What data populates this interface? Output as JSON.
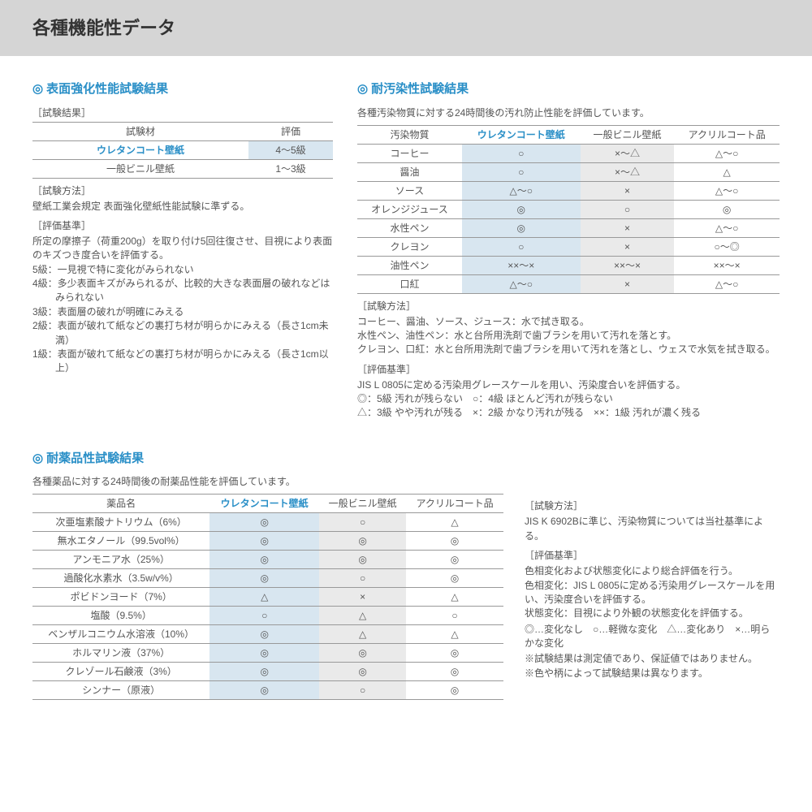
{
  "header": {
    "title": "各種機能性データ"
  },
  "colors": {
    "accent": "#2a8fc7",
    "hl_blue": "#d8e6f0",
    "hl_grey": "#eaeaea"
  },
  "sec1": {
    "title": "表面強化性能試験結果",
    "result_label": "［試験結果］",
    "headers": [
      "試験材",
      "評価"
    ],
    "rows": [
      {
        "name": "ウレタンコート壁紙",
        "val": "4～5級",
        "highlight": true
      },
      {
        "name": "一般ビニル壁紙",
        "val": "1～3級",
        "highlight": false
      }
    ],
    "method_label": "［試験方法］",
    "method_text": "壁紙工業会規定 表面強化壁紙性能試験に準ずる。",
    "criteria_label": "［評価基準］",
    "criteria_text": "所定の摩擦子（荷重200g）を取り付け5回往復させ、目視により表面のキズつき度合いを評価する。",
    "grades": [
      "5級：一見視で特に変化がみられない",
      "4級：多少表面キズがみられるが、比較的大きな表面層の破れなどはみられない",
      "3級：表面層の破れが明確にみえる",
      "2級：表面が破れて紙などの裏打ち材が明らかにみえる（長さ1cm未満）",
      "1級：表面が破れて紙などの裏打ち材が明らかにみえる（長さ1cm以上）"
    ]
  },
  "sec2": {
    "title": "耐汚染性試験結果",
    "intro": "各種汚染物質に対する24時間後の汚れ防止性能を評価しています。",
    "headers": [
      "汚染物質",
      "ウレタンコート壁紙",
      "一般ビニル壁紙",
      "アクリルコート品"
    ],
    "rows": [
      [
        "コーヒー",
        "○",
        "×～△",
        "△～○"
      ],
      [
        "醤油",
        "○",
        "×～△",
        "△"
      ],
      [
        "ソース",
        "△～○",
        "×",
        "△～○"
      ],
      [
        "オレンジジュース",
        "◎",
        "○",
        "◎"
      ],
      [
        "水性ペン",
        "◎",
        "×",
        "△～○"
      ],
      [
        "クレヨン",
        "○",
        "×",
        "○～◎"
      ],
      [
        "油性ペン",
        "××～×",
        "××～×",
        "××～×"
      ],
      [
        "口紅",
        "△～○",
        "×",
        "△～○"
      ]
    ],
    "method_label": "［試験方法］",
    "method_lines": [
      "コーヒー、醤油、ソース、ジュース：水で拭き取る。",
      "水性ペン、油性ペン：水と台所用洗剤で歯ブラシを用いて汚れを落とす。",
      "クレヨン、口紅：水と台所用洗剤で歯ブラシを用いて汚れを落とし、ウェスで水気を拭き取る。"
    ],
    "criteria_label": "［評価基準］",
    "criteria_line": "JIS L 0805に定める汚染用グレースケールを用い、汚染度合いを評価する。",
    "legend1": "◎：5級 汚れが残らない　○：4級 ほとんど汚れが残らない",
    "legend2": "△：3級 やや汚れが残る　×：2級 かなり汚れが残る　××：1級 汚れが濃く残る"
  },
  "sec3": {
    "title": "耐薬品性試験結果",
    "intro": "各種薬品に対する24時間後の耐薬品性能を評価しています。",
    "headers": [
      "薬品名",
      "ウレタンコート壁紙",
      "一般ビニル壁紙",
      "アクリルコート品"
    ],
    "rows": [
      [
        "次亜塩素酸ナトリウム（6%）",
        "◎",
        "○",
        "△"
      ],
      [
        "無水エタノール（99.5vol%）",
        "◎",
        "◎",
        "◎"
      ],
      [
        "アンモニア水（25%）",
        "◎",
        "◎",
        "◎"
      ],
      [
        "過酸化水素水（3.5w/v%）",
        "◎",
        "○",
        "◎"
      ],
      [
        "ポビドンヨード（7%）",
        "△",
        "×",
        "△"
      ],
      [
        "塩酸（9.5%）",
        "○",
        "△",
        "○"
      ],
      [
        "ベンザルコニウム水溶液（10%）",
        "◎",
        "△",
        "△"
      ],
      [
        "ホルマリン液（37%）",
        "◎",
        "◎",
        "◎"
      ],
      [
        "クレゾール石鹸液（3%）",
        "◎",
        "◎",
        "◎"
      ],
      [
        "シンナー（原液）",
        "◎",
        "○",
        "◎"
      ]
    ],
    "method_label": "［試験方法］",
    "method_text": "JIS K 6902Bに準じ、汚染物質については当社基準による。",
    "criteria_label": "［評価基準］",
    "criteria_lines": [
      "色相変化および状態変化により総合評価を行う。",
      "色相変化：JIS L 0805に定める汚染用グレースケールを用い、汚染度合いを評価する。",
      "状態変化：目視により外観の状態変化を評価する。"
    ],
    "legend": "◎…変化なし　○…軽微な変化　△…変化あり　×…明らかな変化",
    "foot1": "※試験結果は測定値であり、保証値ではありません。",
    "foot2": "※色や柄によって試験結果は異なります。"
  }
}
